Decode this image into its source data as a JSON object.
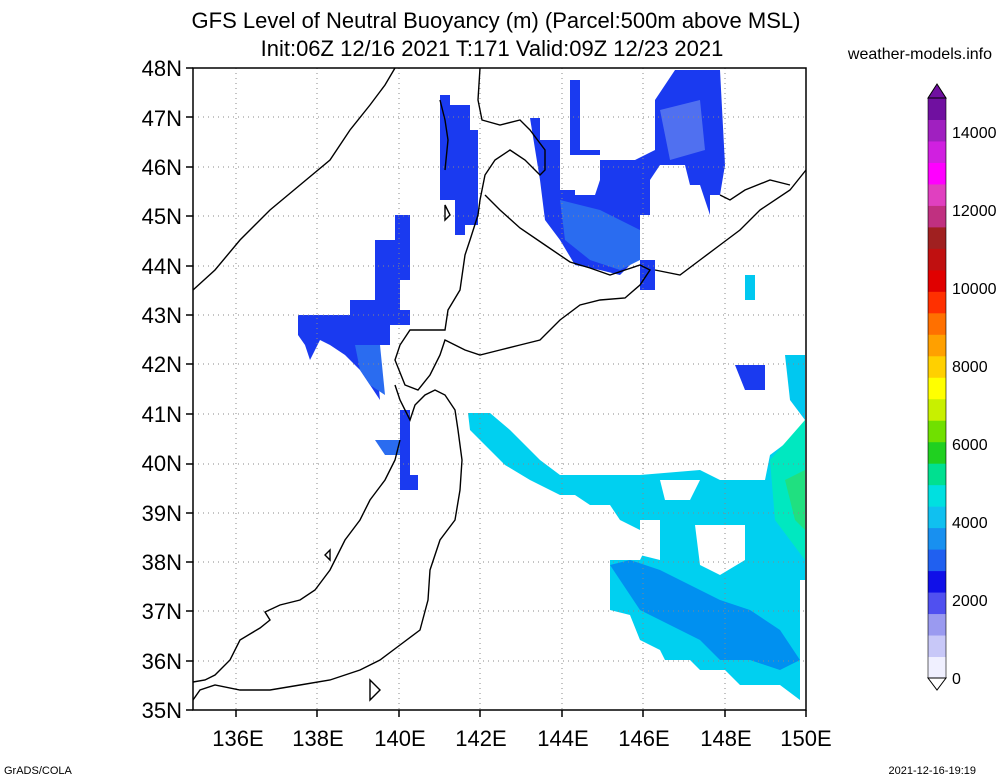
{
  "header": {
    "title_line1": "GFS Level of Neutral Buoyancy (m) (Parcel:500m above MSL)",
    "title_line2": "Init:06Z 12/16 2021 T:171 Valid:09Z 12/23 2021",
    "site": "weather-models.info"
  },
  "axes": {
    "lat_labels": [
      "48N",
      "47N",
      "46N",
      "45N",
      "44N",
      "43N",
      "42N",
      "41N",
      "40N",
      "39N",
      "38N",
      "37N",
      "36N",
      "35N"
    ],
    "lon_labels": [
      "136E",
      "138E",
      "140E",
      "142E",
      "144E",
      "146E",
      "148E",
      "150E"
    ]
  },
  "colorbar": {
    "labels": [
      "14000",
      "12000",
      "10000",
      "8000",
      "6000",
      "4000",
      "2000",
      "0"
    ],
    "colors": [
      "#f0f0ff",
      "#c8c8f8",
      "#9a9af0",
      "#5050f0",
      "#1010e8",
      "#2060f0",
      "#1890f0",
      "#10c0f0",
      "#00e0e0",
      "#00e090",
      "#20d020",
      "#70e000",
      "#c8f000",
      "#ffff00",
      "#ffd000",
      "#ffa000",
      "#ff7000",
      "#ff3000",
      "#e00000",
      "#c01010",
      "#a02020",
      "#c03080",
      "#e040c0",
      "#ff00ff",
      "#d020e0",
      "#a020c0",
      "#7010a0"
    ]
  },
  "footer": {
    "left": "GrADS/COLA",
    "right": "2021-12-16-19:19"
  }
}
